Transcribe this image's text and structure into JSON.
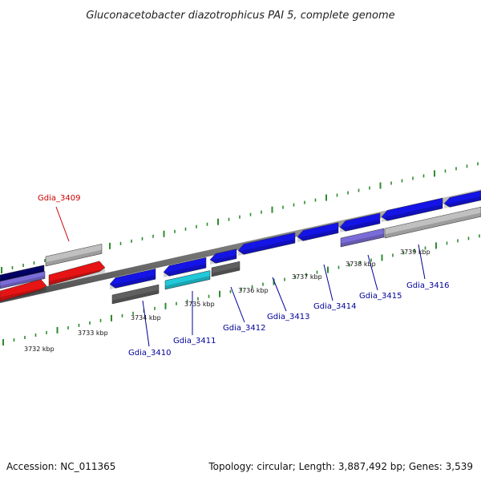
{
  "title": "Gluconacetobacter diazotrophicus PAI 5, complete genome",
  "accession": "Accession: NC_011365",
  "summary": "Topology: circular; Length: 3,887,492 bp; Genes: 3,539",
  "colors": {
    "backbone": "#808080",
    "tick": "#2e8b2e",
    "gene_forward": "#1414e6",
    "gene_reverse": "#e61414",
    "gene_cyan": "#20c8d8",
    "gene_gray": "#c0c0c0",
    "gene_darkgray": "#606060",
    "gene_navy": "#000066",
    "gene_lavender": "#7a6cd8",
    "label_blue": "#000099",
    "label_red": "#cc0000"
  },
  "kbp_labels": [
    "3732 kbp",
    "3733 kbp",
    "3734 kbp",
    "3735 kbp",
    "3736 kbp",
    "3737 kbp",
    "3738 kbp",
    "3739 kbp"
  ],
  "gene_labels": [
    "Gdia_3409",
    "Gdia_3410",
    "Gdia_3411",
    "Gdia_3412",
    "Gdia_3413",
    "Gdia_3414",
    "Gdia_3415",
    "Gdia_3416"
  ]
}
